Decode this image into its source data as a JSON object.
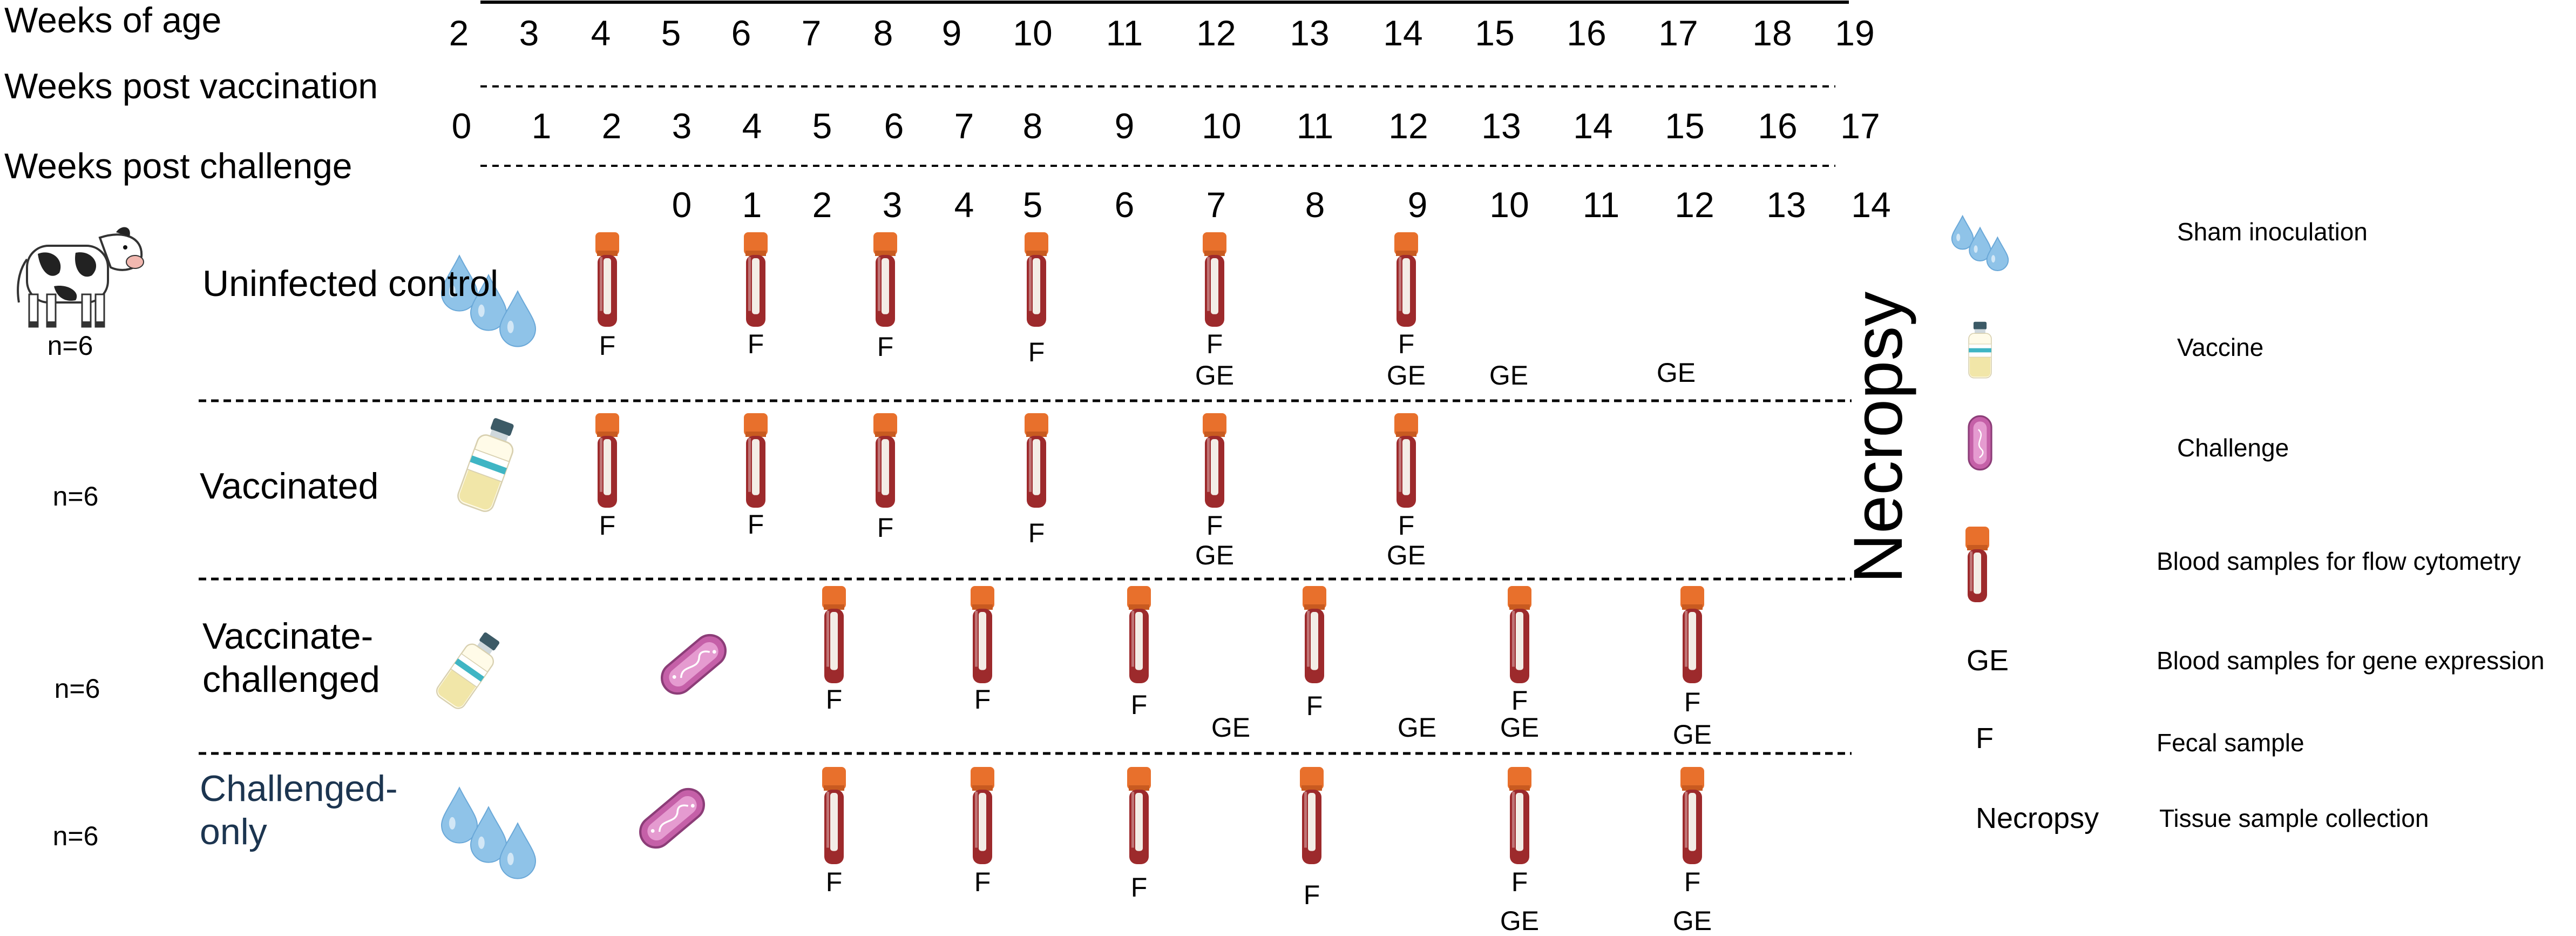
{
  "axes": {
    "age": {
      "label": "Weeks of age",
      "ticks": [
        "2",
        "3",
        "4",
        "5",
        "6",
        "7",
        "8",
        "9",
        "10",
        "11",
        "12",
        "13",
        "14",
        "15",
        "16",
        "17",
        "18",
        "19"
      ]
    },
    "post_vaccination": {
      "label": "Weeks post vaccination",
      "ticks": [
        "0",
        "1",
        "2",
        "3",
        "4",
        "5",
        "6",
        "7",
        "8",
        "9",
        "10",
        "11",
        "12",
        "13",
        "14",
        "15",
        "16",
        "17"
      ]
    },
    "post_challenge": {
      "label": "Weeks post challenge",
      "ticks": [
        "0",
        "1",
        "2",
        "3",
        "4",
        "5",
        "6",
        "7",
        "8",
        "9",
        "10",
        "11",
        "12",
        "13",
        "14"
      ]
    }
  },
  "groups": [
    {
      "label": "Uninfected control",
      "n": "n=6",
      "label_color": "#000000",
      "treatments": [
        "sham-inoculation"
      ],
      "samples": [
        {
          "tube": true,
          "codes": [
            "F"
          ]
        },
        {
          "tube": true,
          "codes": [
            "F"
          ]
        },
        {
          "tube": true,
          "codes": [
            "F"
          ]
        },
        {
          "tube": true,
          "codes": [
            "F"
          ]
        },
        {
          "tube": true,
          "codes": [
            "F",
            "GE"
          ]
        },
        {
          "tube": true,
          "codes": [
            "F",
            "GE"
          ]
        },
        {
          "tube": false,
          "codes": [
            "GE"
          ]
        },
        {
          "tube": false,
          "codes": [
            "GE"
          ]
        }
      ]
    },
    {
      "label": "Vaccinated",
      "n": "n=6",
      "label_color": "#000000",
      "treatments": [
        "vaccine"
      ],
      "samples": [
        {
          "tube": true,
          "codes": [
            "F"
          ]
        },
        {
          "tube": true,
          "codes": [
            "F"
          ]
        },
        {
          "tube": true,
          "codes": [
            "F"
          ]
        },
        {
          "tube": true,
          "codes": [
            "F"
          ]
        },
        {
          "tube": true,
          "codes": [
            "F",
            "GE"
          ]
        },
        {
          "tube": true,
          "codes": [
            "F",
            "GE"
          ]
        }
      ]
    },
    {
      "label": "Vaccinate-challenged",
      "n": "n=6",
      "label_color": "#000000",
      "treatments": [
        "vaccine",
        "challenge"
      ],
      "samples": [
        {
          "tube": true,
          "codes": [
            "F"
          ]
        },
        {
          "tube": true,
          "codes": [
            "F"
          ]
        },
        {
          "tube": true,
          "codes": [
            "F"
          ]
        },
        {
          "tube": false,
          "codes": [
            "GE"
          ]
        },
        {
          "tube": true,
          "codes": [
            "F"
          ]
        },
        {
          "tube": false,
          "codes": [
            "GE"
          ]
        },
        {
          "tube": true,
          "codes": [
            "F",
            "GE"
          ]
        },
        {
          "tube": true,
          "codes": [
            "F",
            "GE"
          ]
        }
      ]
    },
    {
      "label": "Challenged-only",
      "n": "n=6",
      "label_color": "#1c3550",
      "treatments": [
        "sham-inoculation",
        "challenge"
      ],
      "samples": [
        {
          "tube": true,
          "codes": [
            "F"
          ]
        },
        {
          "tube": true,
          "codes": [
            "F"
          ]
        },
        {
          "tube": true,
          "codes": [
            "F"
          ]
        },
        {
          "tube": true,
          "codes": [
            "F"
          ]
        },
        {
          "tube": true,
          "codes": [
            "F",
            "GE"
          ]
        },
        {
          "tube": true,
          "codes": [
            "F",
            "GE"
          ]
        }
      ]
    }
  ],
  "necropsy_label": "Necropsy",
  "legend": [
    {
      "icon": "sham-inoculation-icon",
      "label": "Sham inoculation"
    },
    {
      "icon": "vaccine-vial-icon",
      "label": "Vaccine"
    },
    {
      "icon": "challenge-bacterium-icon",
      "label": "Challenge"
    },
    {
      "icon": "blood-tube-icon",
      "label": "Blood samples for flow cytometry"
    },
    {
      "code": "GE",
      "label": "Blood samples for gene expression"
    },
    {
      "code": "F",
      "label": "Fecal sample"
    },
    {
      "code": "Necropsy",
      "label": "Tissue sample collection"
    }
  ],
  "colors": {
    "tube_cap": "#e8702c",
    "blood": "#9d2a2c",
    "droplet": "#8fc3e8",
    "vial_label": "#3fb5c4",
    "challenge": "#c560a8"
  }
}
